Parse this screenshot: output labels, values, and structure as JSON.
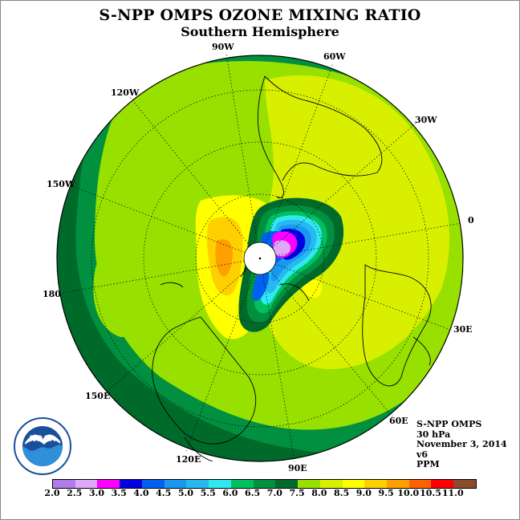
{
  "title": "S-NPP OMPS OZONE MIXING RATIO",
  "subtitle": "Southern Hemisphere",
  "longitude_labels": [
    "90W",
    "60W",
    "30W",
    "0",
    "30E",
    "60E",
    "90E",
    "120E",
    "150E",
    "180",
    "150W",
    "120W"
  ],
  "info": {
    "instrument": "S-NPP OMPS",
    "level": "30 hPa",
    "date": "November 3, 2014",
    "version": "v6",
    "units": "PPM"
  },
  "logo_text": "NOAA",
  "colorbar": {
    "ticks": [
      "2.0",
      "2.5",
      "3.0",
      "3.5",
      "4.0",
      "4.5",
      "5.0",
      "5.5",
      "6.0",
      "6.5",
      "7.0",
      "7.5",
      "8.0",
      "8.5",
      "9.0",
      "9.5",
      "10.0",
      "10.5",
      "11.0"
    ],
    "colors": [
      "#b07ce8",
      "#e0a8f8",
      "#ff00ff",
      "#0000e0",
      "#0060f0",
      "#1898f0",
      "#28b8f0",
      "#30e8f0",
      "#00c060",
      "#009040",
      "#006a2a",
      "#98e000",
      "#d8f000",
      "#ffff00",
      "#ffd000",
      "#ffa000",
      "#ff6000",
      "#ff0000",
      "#8b4a2a"
    ]
  }
}
